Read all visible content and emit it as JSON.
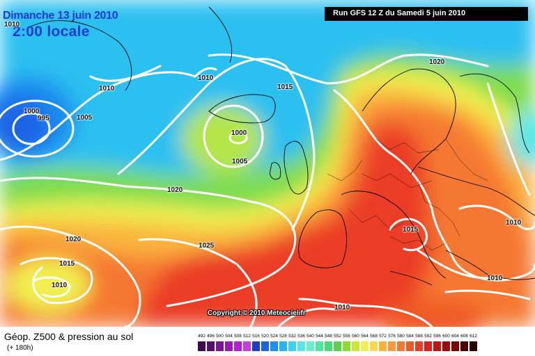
{
  "header": {
    "date": "Dimanche 13 juin 2010",
    "time": "2:00 locale",
    "run": "Run GFS 12 Z du Samedi 5 juin 2010"
  },
  "copyright": "Copyright © 2010 Meteociel.fr",
  "footer": {
    "parameter": "Géop. Z500 & pression au sol",
    "lead_time": "(+ 180h)"
  },
  "isobar_labels": [
    "1010",
    "1010",
    "1000",
    "995",
    "1005",
    "1010",
    "1000",
    "1005",
    "1015",
    "1020",
    "1020",
    "1025",
    "1020",
    "1015",
    "1010",
    "1015",
    "1010",
    "1010",
    "1010"
  ],
  "scale": {
    "ticks": [
      "492",
      "496",
      "500",
      "504",
      "508",
      "512",
      "516",
      "520",
      "524",
      "528",
      "532",
      "536",
      "540",
      "544",
      "548",
      "552",
      "556",
      "560",
      "564",
      "568",
      "572",
      "576",
      "580",
      "584",
      "588",
      "592",
      "596",
      "600",
      "604",
      "608",
      "612"
    ],
    "colors": [
      "#3c0a4a",
      "#5a0c6e",
      "#7a1492",
      "#9a18b4",
      "#b41ed2",
      "#c83ce6",
      "#1e3cc8",
      "#1e64e6",
      "#1e8cf0",
      "#28b4f0",
      "#3cd2f0",
      "#5ae6e6",
      "#64f0c8",
      "#50e6a0",
      "#46dc78",
      "#5ad250",
      "#8cdc32",
      "#c8eb32",
      "#f0f050",
      "#fad750",
      "#fab43c",
      "#fa963c",
      "#f57832",
      "#f05a28",
      "#eb3c28",
      "#e11e1e",
      "#c31414",
      "#a00a0a",
      "#7d0505",
      "#500000",
      "#280000"
    ]
  }
}
